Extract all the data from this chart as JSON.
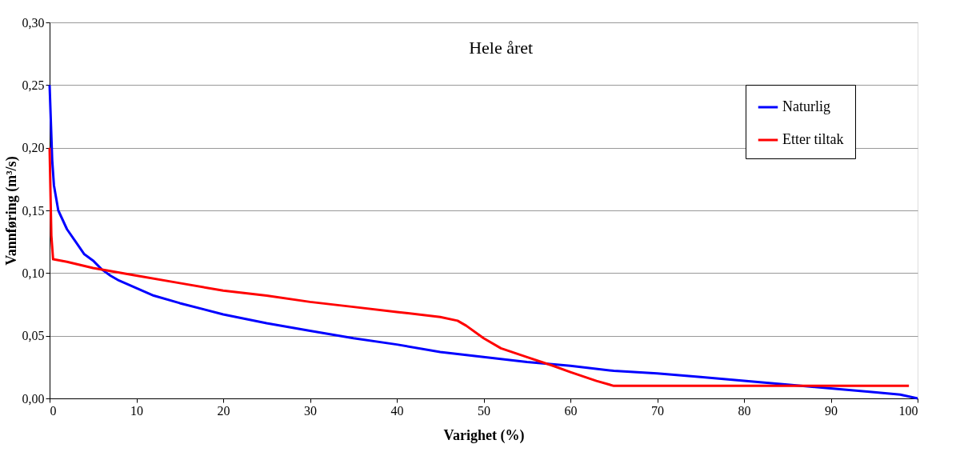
{
  "chart_data": {
    "type": "line",
    "title": "Hele året",
    "xlabel": "Varighet (%)",
    "ylabel": "Vannføring (m³/s)",
    "xlim": [
      0,
      100
    ],
    "xticks": [
      0,
      10,
      20,
      30,
      40,
      50,
      60,
      70,
      80,
      90,
      100
    ],
    "ylim": [
      0,
      0.3
    ],
    "yticks": [
      {
        "value": 0,
        "label": "0,00"
      },
      {
        "value": 0.05,
        "label": "0,05"
      },
      {
        "value": 0.1,
        "label": "0,10"
      },
      {
        "value": 0.15,
        "label": "0,15"
      },
      {
        "value": 0.2,
        "label": "0,20"
      },
      {
        "value": 0.25,
        "label": "0,25"
      },
      {
        "value": 0.3,
        "label": "0,30"
      }
    ],
    "grid": "y",
    "legend": "top right",
    "marker": "none",
    "line_style": "solid",
    "series": [
      {
        "name": "Naturlig",
        "color": "#0000ff",
        "x": [
          0,
          0.3,
          0.5,
          1,
          2,
          3,
          4,
          5,
          6,
          7,
          8,
          10,
          12,
          15,
          20,
          25,
          30,
          35,
          40,
          45,
          50,
          55,
          60,
          65,
          70,
          75,
          80,
          85,
          90,
          95,
          98,
          100
        ],
        "values": [
          0.25,
          0.19,
          0.17,
          0.15,
          0.135,
          0.125,
          0.115,
          0.11,
          0.103,
          0.098,
          0.094,
          0.088,
          0.082,
          0.076,
          0.067,
          0.06,
          0.054,
          0.048,
          0.043,
          0.037,
          0.033,
          0.029,
          0.026,
          0.022,
          0.02,
          0.017,
          0.014,
          0.011,
          0.008,
          0.005,
          0.003,
          0
        ]
      },
      {
        "name": "Etter tiltak",
        "color": "#ff0000",
        "x": [
          0,
          0.2,
          0.4,
          2,
          5,
          10,
          15,
          20,
          25,
          30,
          35,
          40,
          45,
          47,
          48,
          50,
          52,
          55,
          58,
          60,
          63,
          65,
          99
        ],
        "values": [
          0.2,
          0.13,
          0.111,
          0.109,
          0.104,
          0.098,
          0.092,
          0.086,
          0.082,
          0.077,
          0.073,
          0.069,
          0.065,
          0.062,
          0.058,
          0.048,
          0.04,
          0.033,
          0.026,
          0.021,
          0.014,
          0.01,
          0.01
        ]
      }
    ]
  }
}
